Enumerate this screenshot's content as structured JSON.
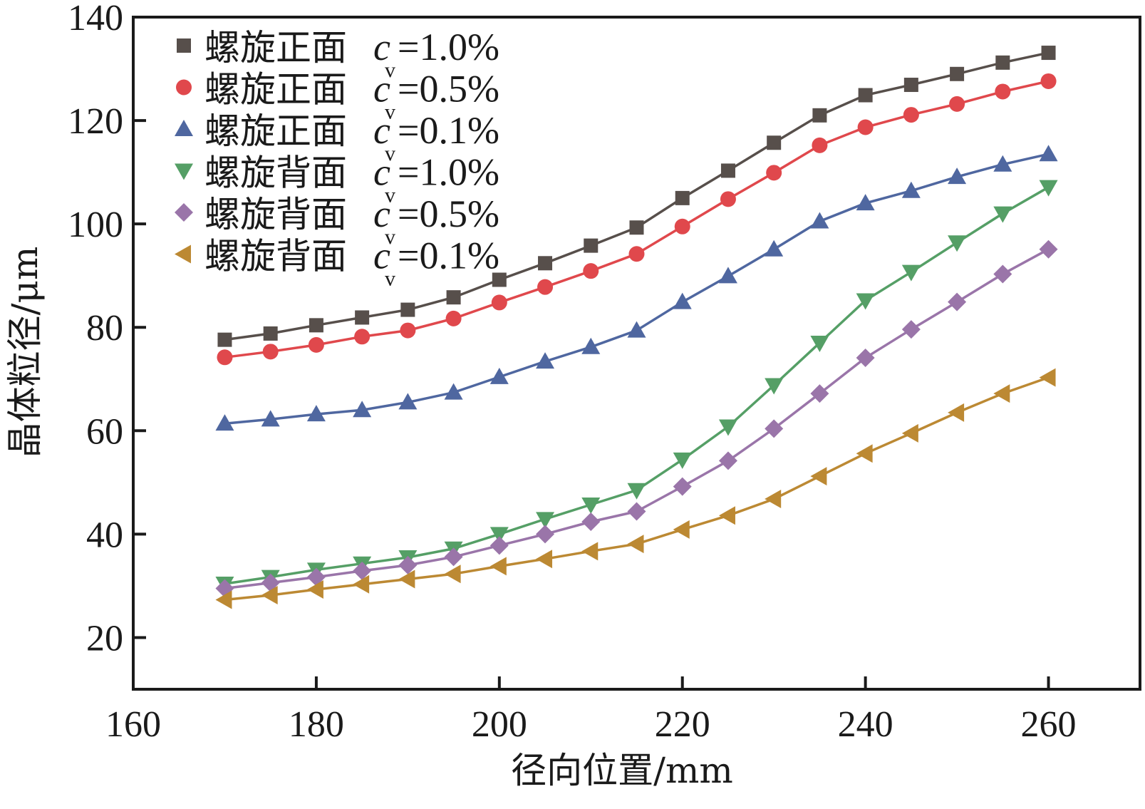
{
  "chart_data": {
    "type": "line",
    "title": "",
    "xlabel": "径向位置/mm",
    "ylabel": "晶体粒径/μm",
    "xlim": [
      160,
      270
    ],
    "ylim": [
      10,
      140
    ],
    "xticks": [
      160,
      180,
      200,
      220,
      240,
      260
    ],
    "yticks": [
      20,
      40,
      60,
      80,
      100,
      120,
      140
    ],
    "grid": false,
    "legend_position": "top-left",
    "x": [
      170,
      175,
      180,
      185,
      190,
      195,
      200,
      205,
      210,
      215,
      220,
      225,
      230,
      235,
      240,
      245,
      250,
      255,
      260
    ],
    "series": [
      {
        "name": "螺旋正面c_v=1.0%",
        "label_prefix": "螺旋正面",
        "var": "c",
        "sub": "v",
        "value_text": "=1.0%",
        "marker": "square",
        "color": "#574f4b",
        "values": [
          77.6,
          78.8,
          80.4,
          81.9,
          83.4,
          85.8,
          89.2,
          92.4,
          95.8,
          99.3,
          105.0,
          110.3,
          115.7,
          121.0,
          124.9,
          126.9,
          129.0,
          131.2,
          133.1
        ]
      },
      {
        "name": "螺旋正面c_v=0.5%",
        "label_prefix": "螺旋正面",
        "var": "c",
        "sub": "v",
        "value_text": "=0.5%",
        "marker": "circle",
        "color": "#e0484c",
        "values": [
          74.2,
          75.3,
          76.6,
          78.2,
          79.4,
          81.7,
          84.8,
          87.8,
          90.9,
          94.2,
          99.5,
          104.8,
          109.9,
          115.2,
          118.7,
          121.1,
          123.2,
          125.6,
          127.6
        ]
      },
      {
        "name": "螺旋正面c_v=0.1%",
        "label_prefix": "螺旋正面",
        "var": "c",
        "sub": "v",
        "value_text": "=0.1%",
        "marker": "triangle-up",
        "color": "#4f67a0",
        "values": [
          61.4,
          62.2,
          63.2,
          64.0,
          65.5,
          67.4,
          70.4,
          73.4,
          76.2,
          79.4,
          84.9,
          89.9,
          95.1,
          100.5,
          104.0,
          106.4,
          109.1,
          111.5,
          113.5
        ]
      },
      {
        "name": "螺旋背面c_v=1.0%",
        "label_prefix": "螺旋背面",
        "var": "c",
        "sub": "v",
        "value_text": "=1.0%",
        "marker": "triangle-down",
        "color": "#559f66",
        "values": [
          30.4,
          31.7,
          33.1,
          34.3,
          35.5,
          37.2,
          40.0,
          42.9,
          45.7,
          48.5,
          54.4,
          60.8,
          68.8,
          77.0,
          85.2,
          90.7,
          96.4,
          102.0,
          107.1
        ]
      },
      {
        "name": "螺旋背面c_v=0.5%",
        "label_prefix": "螺旋背面",
        "var": "c",
        "sub": "v",
        "value_text": "=0.5%",
        "marker": "diamond",
        "color": "#9a75a9",
        "values": [
          29.5,
          30.6,
          31.7,
          32.9,
          34.0,
          35.6,
          37.8,
          40.0,
          42.4,
          44.4,
          49.2,
          54.2,
          60.4,
          67.2,
          74.1,
          79.6,
          84.9,
          90.3,
          95.1
        ]
      },
      {
        "name": "螺旋背面c_v=0.1%",
        "label_prefix": "螺旋背面",
        "var": "c",
        "sub": "v",
        "value_text": "=0.1%",
        "marker": "triangle-left",
        "color": "#bc8933",
        "values": [
          27.3,
          28.2,
          29.3,
          30.3,
          31.3,
          32.3,
          33.8,
          35.2,
          36.7,
          38.1,
          40.9,
          43.6,
          46.8,
          51.2,
          55.6,
          59.5,
          63.5,
          67.2,
          70.3
        ]
      }
    ]
  }
}
